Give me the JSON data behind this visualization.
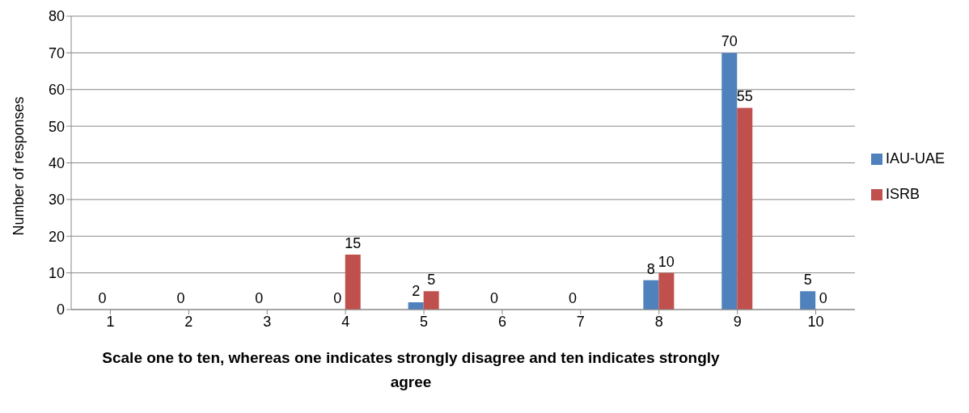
{
  "chart_data": {
    "type": "bar",
    "xlabel": "Scale one to ten, whereas one indicates strongly disagree and ten indicates strongly agree",
    "ylabel": "Number of responses",
    "categories": [
      "1",
      "2",
      "3",
      "4",
      "5",
      "6",
      "7",
      "8",
      "9",
      "10"
    ],
    "series": [
      {
        "name": "IAU-UAE",
        "color": "#4f81bd",
        "values": [
          0,
          0,
          0,
          0,
          2,
          0,
          0,
          8,
          70,
          5
        ],
        "value_labels": [
          "0",
          "0",
          "0",
          "0",
          "2",
          "0",
          "0",
          "8",
          "70",
          "5"
        ]
      },
      {
        "name": "ISRB",
        "color": "#c0504d",
        "values": [
          0,
          0,
          0,
          15,
          5,
          0,
          0,
          10,
          55,
          0
        ],
        "value_labels": [
          null,
          null,
          null,
          "15",
          "5",
          null,
          null,
          "10",
          "55",
          "0"
        ]
      }
    ],
    "ylim": [
      0,
      80
    ],
    "yticks": [
      0,
      10,
      20,
      30,
      40,
      50,
      60,
      70,
      80
    ],
    "grid": "y",
    "legend": "right"
  }
}
